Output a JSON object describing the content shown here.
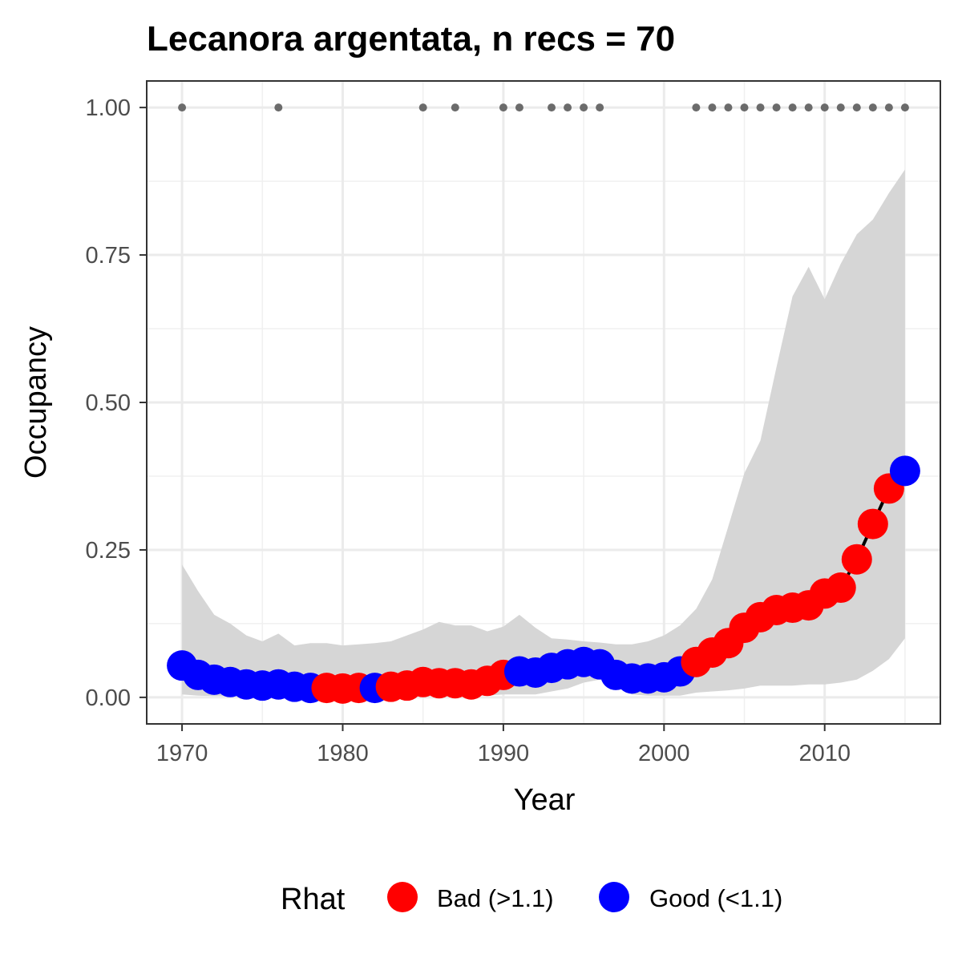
{
  "chart_data": {
    "type": "line",
    "title": "Lecanora argentata, n recs = 70",
    "xlabel": "Year",
    "ylabel": "Occupancy",
    "xlim": [
      1967.8,
      2017.2
    ],
    "ylim": [
      -0.045,
      1.045
    ],
    "x_ticks": [
      1970,
      1980,
      1990,
      2000,
      2010
    ],
    "x_tick_labels": [
      "1970",
      "1980",
      "1990",
      "2000",
      "2010"
    ],
    "y_ticks": [
      0,
      0.25,
      0.5,
      0.75,
      1.0
    ],
    "y_tick_labels": [
      "0.00",
      "0.25",
      "0.50",
      "0.75",
      "1.00"
    ],
    "grid": true,
    "legend": {
      "title": "Rhat",
      "position": "bottom",
      "items": [
        {
          "label": "Bad (>1.1)",
          "color": "#ff0000"
        },
        {
          "label": "Good (<1.1)",
          "color": "#0000ff"
        }
      ]
    },
    "colors": {
      "bad": "#ff0000",
      "good": "#0000ff",
      "ribbon": "#d6d6d6",
      "records": "#6b6b6b",
      "line": "#000000"
    },
    "series": [
      {
        "x": [
          1970,
          1971,
          1972,
          1973,
          1974,
          1975,
          1976,
          1977,
          1978,
          1979,
          1980,
          1981,
          1982,
          1983,
          1984,
          1985,
          1986,
          1987,
          1988,
          1989,
          1990,
          1991,
          1992,
          1993,
          1994,
          1995,
          1996,
          1997,
          1998,
          1999,
          2000,
          2001,
          2002,
          2003,
          2004,
          2005,
          2006,
          2007,
          2008,
          2009,
          2010,
          2011,
          2012,
          2013,
          2014,
          2015
        ],
        "y": [
          0.054,
          0.038,
          0.03,
          0.026,
          0.022,
          0.02,
          0.022,
          0.018,
          0.016,
          0.016,
          0.015,
          0.016,
          0.016,
          0.018,
          0.02,
          0.026,
          0.024,
          0.024,
          0.022,
          0.028,
          0.038,
          0.044,
          0.042,
          0.05,
          0.056,
          0.06,
          0.056,
          0.038,
          0.032,
          0.032,
          0.034,
          0.044,
          0.06,
          0.076,
          0.092,
          0.118,
          0.136,
          0.148,
          0.152,
          0.156,
          0.176,
          0.186,
          0.234,
          0.294,
          0.354,
          0.384
        ],
        "rhat": [
          "good",
          "good",
          "good",
          "good",
          "good",
          "good",
          "good",
          "good",
          "good",
          "bad",
          "bad",
          "bad",
          "good",
          "bad",
          "bad",
          "bad",
          "bad",
          "bad",
          "bad",
          "bad",
          "bad",
          "good",
          "good",
          "good",
          "good",
          "good",
          "good",
          "good",
          "good",
          "good",
          "good",
          "good",
          "bad",
          "bad",
          "bad",
          "bad",
          "bad",
          "bad",
          "bad",
          "bad",
          "bad",
          "bad",
          "bad",
          "bad",
          "bad",
          "good"
        ],
        "lower": [
          0.005,
          0.003,
          0.002,
          0.002,
          0.002,
          0.002,
          0.002,
          0.002,
          0.002,
          0.002,
          0.002,
          0.002,
          0.002,
          0.002,
          0.002,
          0.002,
          0.002,
          0.003,
          0.003,
          0.003,
          0.005,
          0.005,
          0.005,
          0.01,
          0.015,
          0.025,
          0.03,
          0.02,
          0.005,
          0.003,
          0.003,
          0.003,
          0.008,
          0.01,
          0.012,
          0.015,
          0.02,
          0.02,
          0.02,
          0.022,
          0.022,
          0.025,
          0.03,
          0.045,
          0.065,
          0.1
        ],
        "upper": [
          0.225,
          0.18,
          0.14,
          0.125,
          0.105,
          0.095,
          0.108,
          0.088,
          0.092,
          0.092,
          0.088,
          0.09,
          0.092,
          0.095,
          0.105,
          0.115,
          0.128,
          0.122,
          0.122,
          0.112,
          0.12,
          0.14,
          0.118,
          0.1,
          0.098,
          0.095,
          0.093,
          0.09,
          0.09,
          0.095,
          0.105,
          0.122,
          0.15,
          0.2,
          0.29,
          0.38,
          0.435,
          0.56,
          0.68,
          0.73,
          0.675,
          0.735,
          0.785,
          0.81,
          0.855,
          0.895
        ]
      }
    ],
    "record_years": [
      1970,
      1976,
      1985,
      1987,
      1990,
      1991,
      1993,
      1994,
      1995,
      1996,
      2002,
      2003,
      2004,
      2005,
      2006,
      2007,
      2008,
      2009,
      2010,
      2011,
      2012,
      2013,
      2014,
      2015
    ],
    "record_y": 1.0
  }
}
